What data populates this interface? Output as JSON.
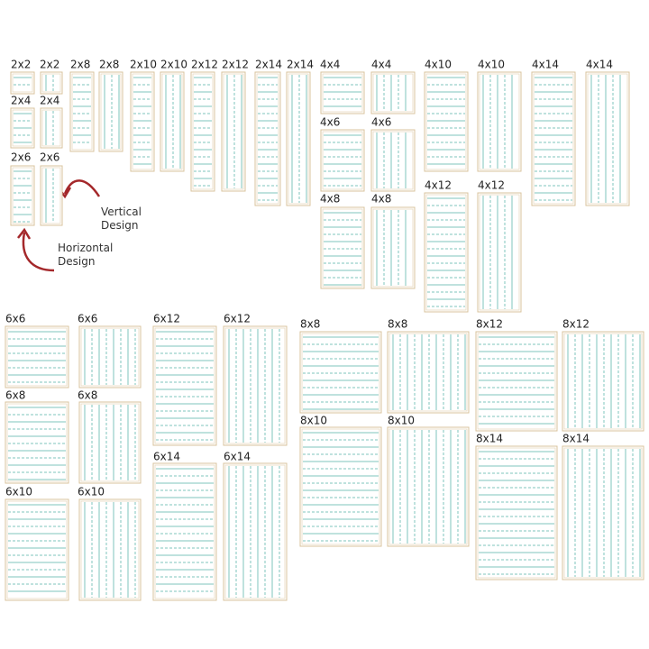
{
  "tiles": [
    "2x2",
    "2x2",
    "2x8",
    "2x8",
    "2x10",
    "2x10",
    "2x12",
    "2x12",
    "2x14",
    "2x14",
    "2x4",
    "2x4",
    "2x6",
    "2x6",
    "4x4",
    "4x4",
    "4x10",
    "4x10",
    "4x14",
    "4x14",
    "4x6",
    "4x6",
    "4x8",
    "4x8",
    "4x12",
    "4x12",
    "6x6",
    "6x6",
    "6x8",
    "6x8",
    "6x10",
    "6x10",
    "6x12",
    "6x12",
    "6x14",
    "6x14",
    "8x8",
    "8x8",
    "8x12",
    "8x12",
    "8x10",
    "8x10",
    "8x14",
    "8x14"
  ],
  "annotations": {
    "vertical": "Vertical Design",
    "horizontal": "Horizontal Design"
  }
}
